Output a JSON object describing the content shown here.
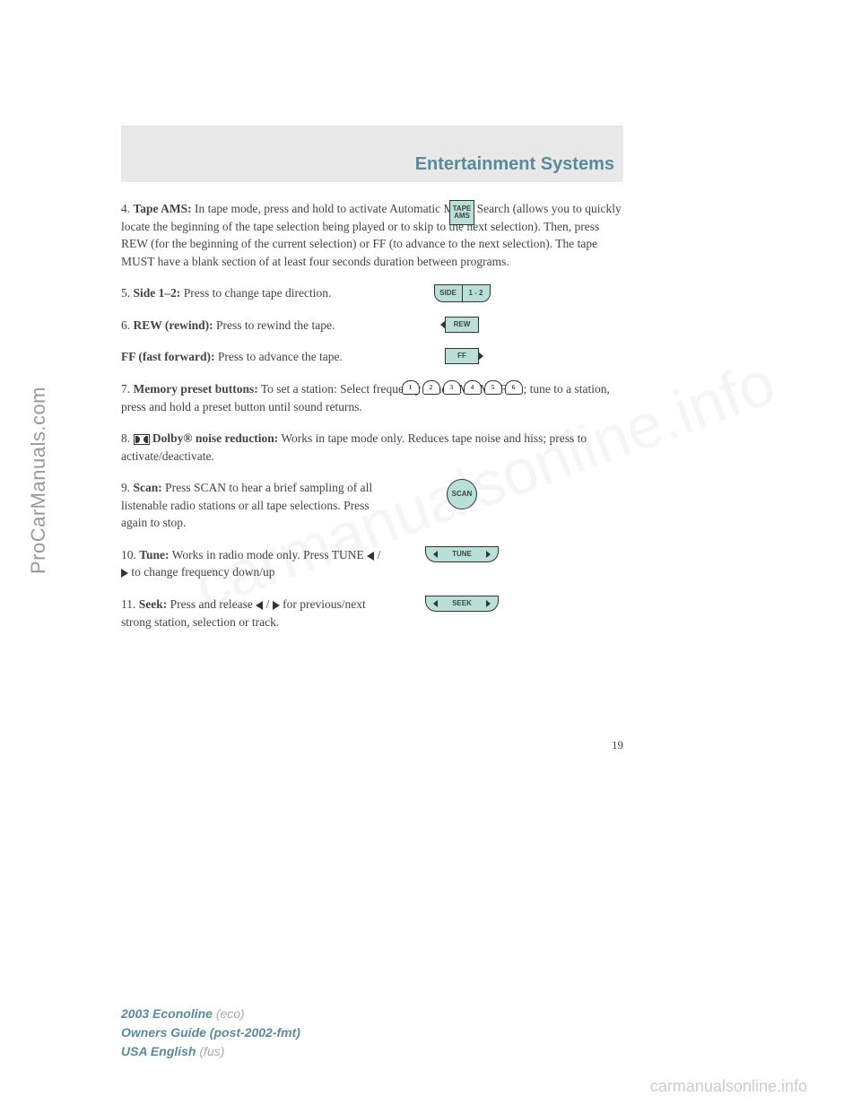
{
  "sidebar_watermark": "ProCarManuals.com",
  "bg_watermark": "carmanualsonline.info",
  "bottom_watermark": "carmanualsonline.info",
  "header": {
    "title": "Entertainment Systems"
  },
  "items": {
    "i4": {
      "num": "4. ",
      "label": "Tape AMS:",
      "text_a": " In tape mode, press and hold to activate Automatic Music Search (allows you to quickly locate the beginning of the tape selection being played or to skip to the next selection). Then, press REW (for the beginning of the current selection) or FF (to advance to the next selection). The tape MUST have a blank section of at least four seconds duration between programs.",
      "icon": {
        "line1": "TAPE",
        "line2": "AMS"
      }
    },
    "i5": {
      "num": "5. ",
      "label": "Side 1–2:",
      "text": " Press to change tape direction.",
      "icon": {
        "left": "SIDE",
        "right": "1 - 2"
      }
    },
    "i6": {
      "num": "6. ",
      "label": "REW (rewind):",
      "text": " Press to rewind the tape.",
      "icon": "REW"
    },
    "ff": {
      "label": "FF (fast forward):",
      "text": " Press to advance the tape.",
      "icon": "FF"
    },
    "i7": {
      "num": "7. ",
      "label": "Memory preset buttons:",
      "text_a": " To set a station: Select frequency band AM/FM1/FM2; tune to a station, press and hold a preset button until sound returns.",
      "presets": [
        "1",
        "2",
        "3",
        "4",
        "5",
        "6"
      ]
    },
    "i8": {
      "num": "8. ",
      "label": "Dolby® noise reduction:",
      "text": " Works in tape mode only. Reduces tape noise and hiss; press to activate/deactivate."
    },
    "i9": {
      "num": "9. ",
      "label": "Scan:",
      "text": " Press SCAN to hear a brief sampling of all listenable radio stations or all tape selections. Press again to stop.",
      "icon": "SCAN"
    },
    "i10": {
      "num": "10. ",
      "label": "Tune:",
      "text_a": " Works in radio mode only. Press TUNE ",
      "text_b": " to change frequency down/up",
      "icon": "TUNE"
    },
    "i11": {
      "num": "11. ",
      "label": "Seek:",
      "text_a": " Press and release ",
      "text_b": " for previous/next strong station, selection or track.",
      "icon": "SEEK"
    }
  },
  "page_number": "19",
  "footer": {
    "model": "2003 Econoline",
    "model_code": " (eco)",
    "guide": "Owners Guide (post-2002-fmt)",
    "lang": "USA English",
    "lang_code": " (fus)"
  }
}
